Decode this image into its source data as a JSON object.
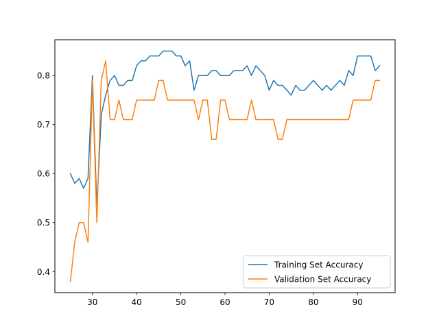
{
  "chart_data": {
    "type": "line",
    "title": "",
    "xlabel": "",
    "ylabel": "",
    "xlim": [
      21.5,
      98.5
    ],
    "ylim": [
      0.357,
      0.873
    ],
    "xticks": [
      30,
      40,
      50,
      60,
      70,
      80,
      90
    ],
    "yticks": [
      0.4,
      0.5,
      0.6,
      0.7,
      0.8
    ],
    "grid": false,
    "legend_position": "lower-right",
    "x": [
      25,
      26,
      27,
      28,
      29,
      30,
      31,
      32,
      33,
      34,
      35,
      36,
      37,
      38,
      39,
      40,
      41,
      42,
      43,
      44,
      45,
      46,
      47,
      48,
      49,
      50,
      51,
      52,
      53,
      54,
      55,
      56,
      57,
      58,
      59,
      60,
      61,
      62,
      63,
      64,
      65,
      66,
      67,
      68,
      69,
      70,
      71,
      72,
      73,
      74,
      75,
      76,
      77,
      78,
      79,
      80,
      81,
      82,
      83,
      84,
      85,
      86,
      87,
      88,
      89,
      90,
      91,
      92,
      93,
      94,
      95
    ],
    "series": [
      {
        "name": "Training Set Accuracy",
        "color": "#1f77b4",
        "values": [
          0.6,
          0.58,
          0.59,
          0.57,
          0.59,
          0.8,
          0.53,
          0.72,
          0.76,
          0.79,
          0.8,
          0.78,
          0.78,
          0.79,
          0.79,
          0.82,
          0.83,
          0.83,
          0.84,
          0.84,
          0.84,
          0.85,
          0.85,
          0.85,
          0.84,
          0.84,
          0.82,
          0.83,
          0.77,
          0.8,
          0.8,
          0.8,
          0.81,
          0.81,
          0.8,
          0.8,
          0.8,
          0.81,
          0.81,
          0.81,
          0.82,
          0.8,
          0.82,
          0.81,
          0.8,
          0.77,
          0.79,
          0.78,
          0.78,
          0.77,
          0.76,
          0.78,
          0.77,
          0.77,
          0.78,
          0.79,
          0.78,
          0.77,
          0.78,
          0.77,
          0.78,
          0.79,
          0.78,
          0.81,
          0.8,
          0.84,
          0.84,
          0.84,
          0.84,
          0.81,
          0.82
        ]
      },
      {
        "name": "Validation Set Accuracy",
        "color": "#ff7f0e",
        "values": [
          0.38,
          0.46,
          0.5,
          0.5,
          0.46,
          0.79,
          0.5,
          0.79,
          0.83,
          0.71,
          0.71,
          0.75,
          0.71,
          0.71,
          0.71,
          0.75,
          0.75,
          0.75,
          0.75,
          0.75,
          0.79,
          0.79,
          0.75,
          0.75,
          0.75,
          0.75,
          0.75,
          0.75,
          0.75,
          0.71,
          0.75,
          0.75,
          0.67,
          0.67,
          0.75,
          0.75,
          0.71,
          0.71,
          0.71,
          0.71,
          0.71,
          0.75,
          0.71,
          0.71,
          0.71,
          0.71,
          0.71,
          0.67,
          0.67,
          0.71,
          0.71,
          0.71,
          0.71,
          0.71,
          0.71,
          0.71,
          0.71,
          0.71,
          0.71,
          0.71,
          0.71,
          0.71,
          0.71,
          0.71,
          0.75,
          0.75,
          0.75,
          0.75,
          0.75,
          0.79,
          0.79
        ]
      }
    ]
  }
}
